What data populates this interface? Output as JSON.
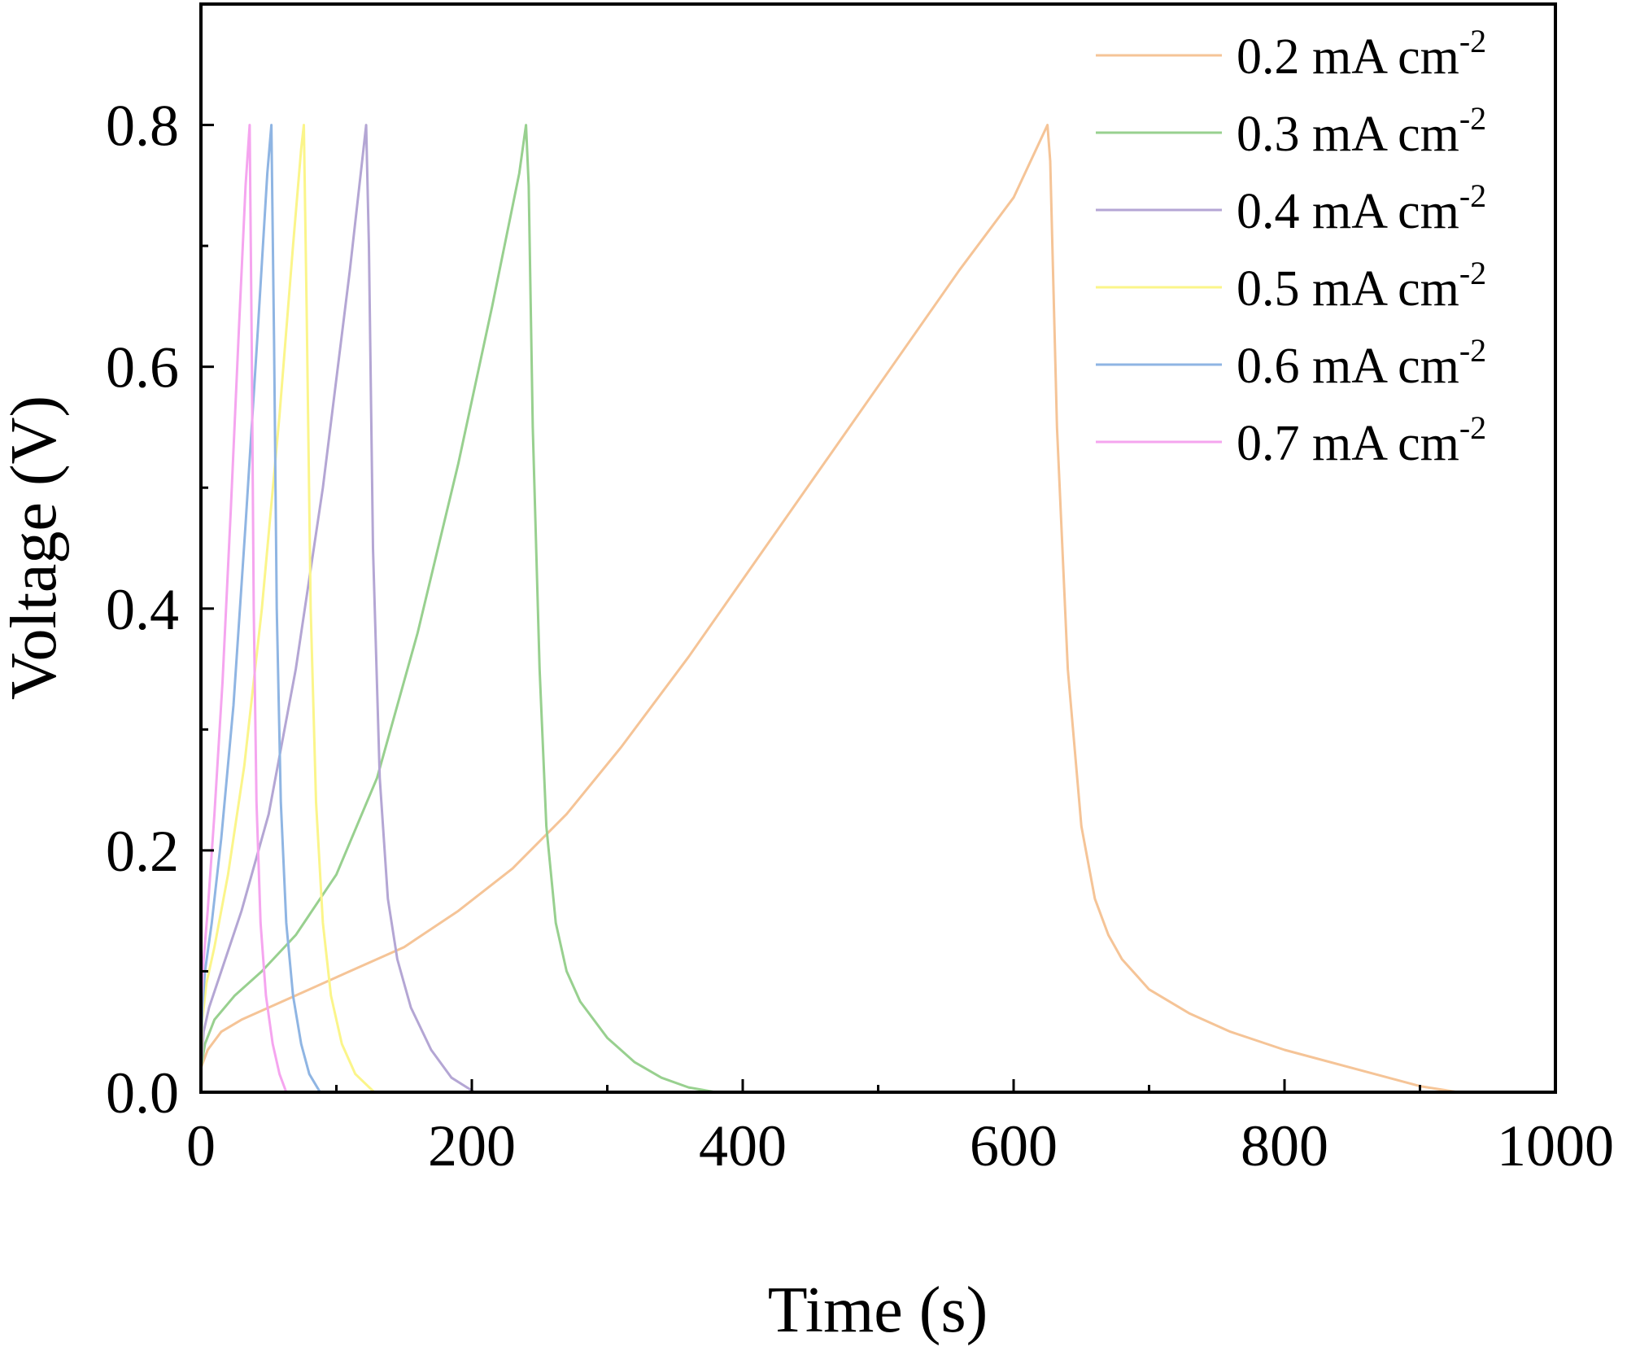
{
  "chart_data": {
    "type": "line",
    "xlabel": "Time (s)",
    "ylabel": "Voltage (V)",
    "xlim": [
      0,
      1000
    ],
    "ylim": [
      0,
      0.9
    ],
    "xticks": [
      0,
      200,
      400,
      600,
      800,
      1000
    ],
    "xtick_labels": [
      "0",
      "200",
      "400",
      "600",
      "800",
      "1000"
    ],
    "xminor": [
      100,
      300,
      500,
      700,
      900
    ],
    "yticks": [
      0,
      0.2,
      0.4,
      0.6,
      0.8
    ],
    "ytick_labels": [
      "0.0",
      "0.2",
      "0.4",
      "0.6",
      "0.8"
    ],
    "yminor": [
      0.1,
      0.3,
      0.5,
      0.7
    ],
    "legend_position": "top-right",
    "grid": false,
    "series": [
      {
        "name": "0.2 mA cm-2",
        "label_main": "0.2 mA cm",
        "label_sup": "-2",
        "color": "#f5c497",
        "x": [
          0,
          5,
          15,
          30,
          50,
          80,
          110,
          150,
          190,
          230,
          270,
          310,
          360,
          410,
          460,
          510,
          560,
          600,
          625,
          627,
          632,
          640,
          650,
          660,
          670,
          680,
          700,
          730,
          760,
          800,
          850,
          900,
          928
        ],
        "y": [
          0.02,
          0.035,
          0.05,
          0.06,
          0.07,
          0.085,
          0.1,
          0.12,
          0.15,
          0.185,
          0.23,
          0.285,
          0.36,
          0.44,
          0.52,
          0.6,
          0.68,
          0.74,
          0.8,
          0.77,
          0.55,
          0.35,
          0.22,
          0.16,
          0.13,
          0.11,
          0.085,
          0.065,
          0.05,
          0.035,
          0.02,
          0.005,
          0.0
        ]
      },
      {
        "name": "0.3 mA cm-2",
        "label_main": "0.3 mA cm",
        "label_sup": "-2",
        "color": "#98d08f",
        "x": [
          0,
          3,
          10,
          25,
          45,
          70,
          100,
          130,
          160,
          190,
          215,
          235,
          240,
          242,
          245,
          250,
          255,
          262,
          270,
          280,
          300,
          320,
          340,
          360,
          380
        ],
        "y": [
          0.02,
          0.04,
          0.06,
          0.08,
          0.1,
          0.13,
          0.18,
          0.26,
          0.38,
          0.52,
          0.65,
          0.76,
          0.8,
          0.75,
          0.55,
          0.35,
          0.22,
          0.14,
          0.1,
          0.075,
          0.045,
          0.025,
          0.012,
          0.004,
          0.0
        ]
      },
      {
        "name": "0.4 mA cm-2",
        "label_main": "0.4 mA cm",
        "label_sup": "-2",
        "color": "#b4a6d4",
        "x": [
          0,
          2,
          6,
          15,
          30,
          50,
          70,
          90,
          110,
          120,
          122,
          124,
          127,
          132,
          138,
          145,
          155,
          170,
          185,
          202
        ],
        "y": [
          0.02,
          0.05,
          0.07,
          0.1,
          0.15,
          0.23,
          0.35,
          0.5,
          0.68,
          0.78,
          0.8,
          0.7,
          0.45,
          0.26,
          0.16,
          0.11,
          0.07,
          0.035,
          0.012,
          0.0
        ]
      },
      {
        "name": "0.5 mA cm-2",
        "label_main": "0.5 mA cm",
        "label_sup": "-2",
        "color": "#fbf58a",
        "x": [
          0,
          1,
          4,
          10,
          20,
          32,
          45,
          58,
          68,
          74,
          76,
          78,
          81,
          85,
          90,
          96,
          104,
          114,
          128
        ],
        "y": [
          0.02,
          0.06,
          0.09,
          0.12,
          0.18,
          0.27,
          0.4,
          0.56,
          0.7,
          0.78,
          0.8,
          0.65,
          0.4,
          0.24,
          0.14,
          0.08,
          0.04,
          0.015,
          0.0
        ]
      },
      {
        "name": "0.6 mA cm-2",
        "label_main": "0.6 mA cm",
        "label_sup": "-2",
        "color": "#8fb5e3",
        "x": [
          0,
          1,
          3,
          8,
          15,
          24,
          33,
          42,
          49,
          52,
          54,
          56,
          59,
          63,
          68,
          74,
          80,
          88
        ],
        "y": [
          0.03,
          0.07,
          0.1,
          0.14,
          0.21,
          0.32,
          0.47,
          0.63,
          0.76,
          0.8,
          0.62,
          0.4,
          0.24,
          0.14,
          0.08,
          0.04,
          0.015,
          0.0
        ]
      },
      {
        "name": "0.7 mA cm-2",
        "label_main": "0.7 mA cm",
        "label_sup": "-2",
        "color": "#f5a5ef",
        "x": [
          0,
          0.5,
          2,
          5,
          10,
          16,
          22,
          28,
          33,
          36,
          37.5,
          39,
          41,
          44,
          48,
          53,
          58,
          63
        ],
        "y": [
          0.04,
          0.08,
          0.11,
          0.15,
          0.23,
          0.34,
          0.48,
          0.63,
          0.75,
          0.8,
          0.62,
          0.4,
          0.24,
          0.14,
          0.08,
          0.04,
          0.015,
          0.0
        ]
      }
    ]
  }
}
